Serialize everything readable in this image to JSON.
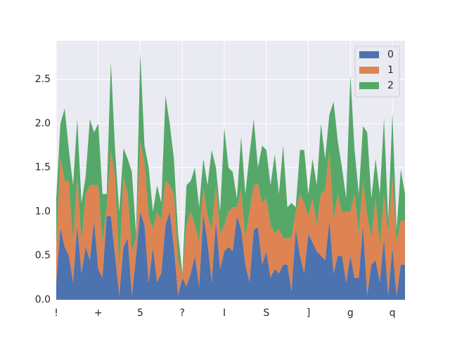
{
  "chart_data": {
    "type": "area",
    "stacked": true,
    "categories": [
      "!",
      null,
      null,
      null,
      null,
      null,
      null,
      null,
      null,
      null,
      "+",
      null,
      null,
      null,
      null,
      null,
      null,
      null,
      null,
      null,
      "5",
      null,
      null,
      null,
      null,
      null,
      null,
      null,
      null,
      null,
      "?",
      null,
      null,
      null,
      null,
      null,
      null,
      null,
      null,
      null,
      "I",
      null,
      null,
      null,
      null,
      null,
      null,
      null,
      null,
      null,
      "S",
      null,
      null,
      null,
      null,
      null,
      null,
      null,
      null,
      null,
      "]",
      null,
      null,
      null,
      null,
      null,
      null,
      null,
      null,
      null,
      "g",
      null,
      null,
      null,
      null,
      null,
      null,
      null,
      null,
      null,
      "q",
      null,
      null,
      null
    ],
    "series": [
      {
        "name": "0",
        "color": "#4c72b0",
        "values": [
          0.2,
          0.82,
          0.6,
          0.5,
          0.2,
          0.85,
          0.3,
          0.6,
          0.45,
          0.9,
          0.35,
          0.25,
          0.95,
          0.95,
          0.5,
          0.05,
          0.6,
          0.7,
          0.05,
          0.5,
          1.0,
          0.85,
          0.2,
          0.6,
          0.2,
          0.3,
          0.85,
          1.0,
          0.6,
          0.05,
          0.25,
          0.15,
          0.3,
          0.5,
          0.15,
          0.98,
          0.65,
          0.2,
          0.9,
          0.35,
          0.55,
          0.6,
          0.55,
          0.95,
          0.8,
          0.4,
          0.2,
          0.8,
          0.82,
          0.4,
          0.55,
          0.25,
          0.35,
          0.3,
          0.4,
          0.4,
          0.1,
          0.8,
          0.5,
          0.3,
          0.75,
          0.65,
          0.55,
          0.5,
          0.45,
          0.9,
          0.3,
          0.5,
          0.5,
          0.2,
          0.5,
          0.25,
          0.25,
          0.85,
          0.05,
          0.4,
          0.45,
          0.2,
          0.7,
          0.05,
          0.6,
          0.05,
          0.4,
          0.4
        ]
      },
      {
        "name": "1",
        "color": "#dd8452",
        "values": [
          0.4,
          0.8,
          0.75,
          0.85,
          0.45,
          0.55,
          0.35,
          0.6,
          0.85,
          0.4,
          0.95,
          0.4,
          0.1,
          0.75,
          0.9,
          0.3,
          0.8,
          0.5,
          0.5,
          0.2,
          0.8,
          0.7,
          0.75,
          0.2,
          0.8,
          0.6,
          0.5,
          0.3,
          0.6,
          0.4,
          0.03,
          0.7,
          0.7,
          0.35,
          0.5,
          0.3,
          0.3,
          0.6,
          0.4,
          0.4,
          0.3,
          0.4,
          0.5,
          0.1,
          0.45,
          0.3,
          0.8,
          0.5,
          0.5,
          0.7,
          0.6,
          0.6,
          0.4,
          0.5,
          0.3,
          0.3,
          0.6,
          0.2,
          0.7,
          0.8,
          0.2,
          0.5,
          0.3,
          0.7,
          0.8,
          0.8,
          0.6,
          0.7,
          0.5,
          0.8,
          0.5,
          0.95,
          0.5,
          0.5,
          0.9,
          0.3,
          0.7,
          0.4,
          0.5,
          0.7,
          0.8,
          0.6,
          0.5,
          0.5
        ]
      },
      {
        "name": "2",
        "color": "#55a868",
        "values": [
          0.55,
          0.38,
          0.82,
          0.35,
          0.65,
          0.65,
          0.45,
          0.2,
          0.75,
          0.6,
          0.7,
          0.55,
          0.15,
          1.0,
          0.3,
          0.65,
          0.32,
          0.4,
          0.9,
          0.05,
          1.0,
          0.2,
          0.55,
          0.2,
          0.3,
          0.2,
          0.97,
          0.7,
          0.4,
          0.3,
          0.02,
          0.45,
          0.35,
          0.65,
          0.4,
          0.32,
          0.35,
          0.9,
          0.2,
          0.25,
          1.1,
          0.5,
          0.4,
          0.1,
          0.6,
          0.5,
          0.65,
          0.75,
          0.18,
          0.65,
          0.55,
          0.45,
          0.9,
          0.4,
          1.05,
          0.35,
          0.4,
          0.05,
          0.5,
          0.6,
          0.25,
          0.45,
          0.45,
          0.8,
          0.35,
          0.4,
          1.35,
          0.6,
          0.5,
          0.15,
          1.55,
          0.5,
          0.45,
          0.62,
          0.95,
          0.45,
          0.45,
          0.6,
          0.86,
          0.15,
          0.72,
          0.15,
          0.58,
          0.3
        ]
      }
    ],
    "ylim": [
      0,
      2.94
    ],
    "yticks": [
      {
        "value": 0,
        "label": "0.0"
      },
      {
        "value": 0.5,
        "label": "0.5"
      },
      {
        "value": 1,
        "label": "1.0"
      },
      {
        "value": 1.5,
        "label": "1.5"
      },
      {
        "value": 2,
        "label": "2.0"
      },
      {
        "value": 2.5,
        "label": "2.5"
      }
    ],
    "grid": true,
    "legend": "upper right"
  }
}
